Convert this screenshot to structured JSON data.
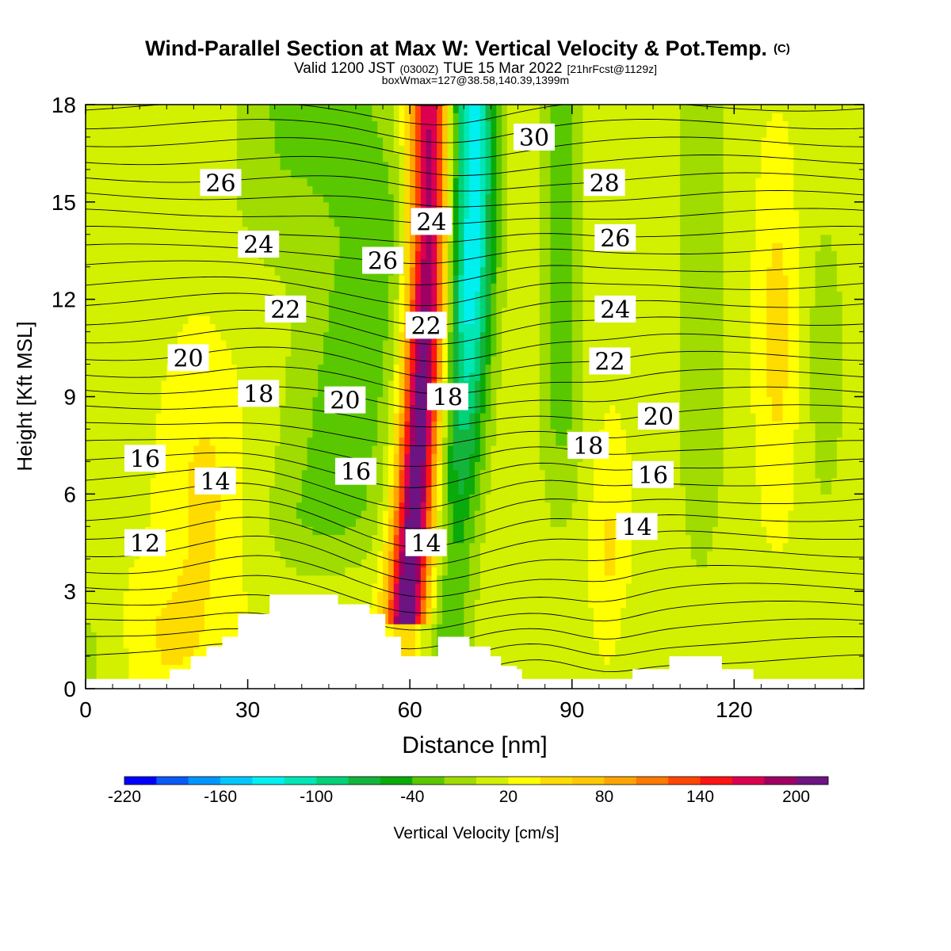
{
  "chart_data": {
    "type": "heatmap",
    "title_main": "Wind-Parallel Section at Max W: Vertical Velocity & Pot.Temp.",
    "title_mark": "(C)",
    "subtitle_valid": "Valid 1200 JST",
    "subtitle_utc": "(0300Z)",
    "subtitle_date": "TUE 15 Mar 2022",
    "subtitle_fcst": "[21hrFcst@1129z]",
    "subtitle_box": "boxWmax=127@38.58,140.39,1399m",
    "xlabel": "Distance [nm]",
    "ylabel": "Height [Kft MSL]",
    "xlim": [
      0,
      144
    ],
    "ylim": [
      0,
      18
    ],
    "xticks": [
      "0",
      "30",
      "60",
      "90",
      "120"
    ],
    "yticks": [
      "0",
      "3",
      "6",
      "9",
      "12",
      "15",
      "18"
    ],
    "colorbar": {
      "label": "Vertical Velocity [cm/s]",
      "tick_labels": [
        "-220",
        "-160",
        "-100",
        "-40",
        "20",
        "80",
        "140",
        "200"
      ],
      "levels": [
        -220,
        -200,
        -180,
        -160,
        -140,
        -120,
        -100,
        -80,
        -60,
        -40,
        -20,
        0,
        20,
        40,
        60,
        80,
        100,
        120,
        140,
        160,
        180,
        200,
        220
      ],
      "colors": [
        "#0000ff",
        "#0a5af5",
        "#0096ff",
        "#00c8ff",
        "#00f0f0",
        "#00e6b4",
        "#00d278",
        "#14b43c",
        "#0aaa0a",
        "#5ac800",
        "#a0dc00",
        "#d2f000",
        "#ffff00",
        "#ffdc00",
        "#ffc800",
        "#ffa500",
        "#ff7800",
        "#ff4600",
        "#ff1414",
        "#dc0050",
        "#a00064",
        "#6e1482"
      ]
    },
    "theta_labels": [
      {
        "text": "30",
        "x": 83,
        "y": 17.0
      },
      {
        "text": "26",
        "x": 25,
        "y": 15.6
      },
      {
        "text": "28",
        "x": 96,
        "y": 15.6
      },
      {
        "text": "24",
        "x": 64,
        "y": 14.4
      },
      {
        "text": "24",
        "x": 32,
        "y": 13.7
      },
      {
        "text": "26",
        "x": 55,
        "y": 13.2
      },
      {
        "text": "26",
        "x": 98,
        "y": 13.9
      },
      {
        "text": "22",
        "x": 63,
        "y": 11.2
      },
      {
        "text": "22",
        "x": 37,
        "y": 11.7
      },
      {
        "text": "24",
        "x": 98,
        "y": 11.7
      },
      {
        "text": "20",
        "x": 19,
        "y": 10.2
      },
      {
        "text": "22",
        "x": 97,
        "y": 10.1
      },
      {
        "text": "18",
        "x": 32,
        "y": 9.1
      },
      {
        "text": "20",
        "x": 48,
        "y": 8.9
      },
      {
        "text": "18",
        "x": 67,
        "y": 9.0
      },
      {
        "text": "20",
        "x": 106,
        "y": 8.4
      },
      {
        "text": "16",
        "x": 11,
        "y": 7.1
      },
      {
        "text": "14",
        "x": 24,
        "y": 6.4
      },
      {
        "text": "16",
        "x": 50,
        "y": 6.7
      },
      {
        "text": "18",
        "x": 93,
        "y": 7.5
      },
      {
        "text": "16",
        "x": 105,
        "y": 6.6
      },
      {
        "text": "14",
        "x": 102,
        "y": 5.0
      },
      {
        "text": "12",
        "x": 11,
        "y": 4.5
      },
      {
        "text": "14",
        "x": 63,
        "y": 4.5
      }
    ],
    "terrain_kft": [
      0.3,
      0.3,
      0.3,
      0.3,
      0.3,
      0.3,
      0.3,
      0.3,
      0.3,
      0.3,
      0.3,
      0.3,
      0.3,
      0.3,
      0.3,
      0.3,
      0.6,
      0.6,
      0.6,
      0.6,
      1.0,
      1.0,
      1.0,
      1.3,
      1.3,
      1.3,
      1.6,
      1.6,
      1.6,
      2.3,
      2.3,
      2.3,
      2.3,
      2.3,
      2.3,
      2.9,
      2.9,
      2.9,
      2.9,
      2.9,
      2.9,
      2.9,
      2.9,
      2.9,
      2.9,
      2.9,
      2.9,
      2.9,
      2.6,
      2.6,
      2.6,
      2.6,
      2.6,
      2.6,
      2.3,
      2.3,
      2.3,
      1.6,
      1.6,
      1.6,
      1.0,
      1.0,
      1.0,
      1.0,
      1.0,
      1.0,
      1.0,
      1.6,
      1.6,
      1.6,
      1.6,
      1.6,
      1.6,
      1.3,
      1.3,
      1.3,
      1.3,
      1.0,
      1.0,
      0.7,
      0.7,
      0.7,
      0.6,
      0.3,
      0.3,
      0.3,
      0.3,
      0.3,
      0.3,
      0.3,
      0.3,
      0.3,
      0.3,
      0.3,
      0.3,
      0.3,
      0.3,
      0.3,
      0.3,
      0.3,
      0.3,
      0.3,
      0.3,
      0.3,
      0.6,
      0.6,
      0.6,
      0.6,
      0.6,
      0.6,
      0.6,
      1.0,
      1.0,
      1.0,
      1.0,
      1.0,
      1.0,
      1.0,
      1.0,
      1.0,
      1.0,
      0.6,
      0.6,
      0.6,
      0.6,
      0.6,
      0.6,
      0.3,
      0.3,
      0.3,
      0.3,
      0.3,
      0.3,
      0.3,
      0.3,
      0.3,
      0.3,
      0.3,
      0.3,
      0.3,
      0.3,
      0.3,
      0.3,
      0.3,
      0.3,
      0.3,
      0.3,
      0.3
    ]
  }
}
